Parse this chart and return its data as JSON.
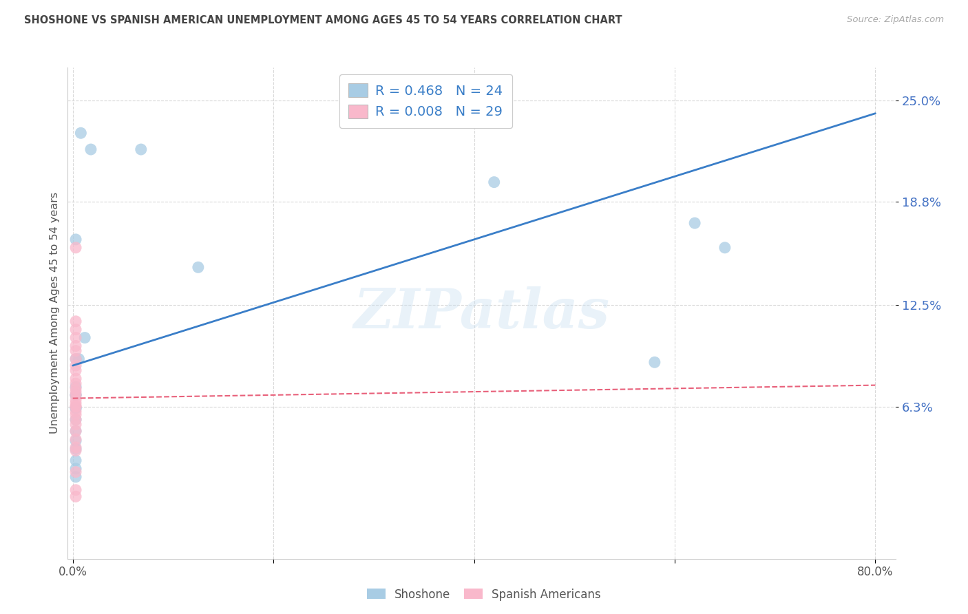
{
  "title": "SHOSHONE VS SPANISH AMERICAN UNEMPLOYMENT AMONG AGES 45 TO 54 YEARS CORRELATION CHART",
  "source": "Source: ZipAtlas.com",
  "ylabel": "Unemployment Among Ages 45 to 54 years",
  "ytick_values": [
    0.063,
    0.125,
    0.188,
    0.25
  ],
  "ytick_labels": [
    "6.3%",
    "12.5%",
    "18.8%",
    "25.0%"
  ],
  "xlim": [
    -0.005,
    0.82
  ],
  "ylim": [
    -0.03,
    0.27
  ],
  "watermark": "ZIPatlas",
  "legend_blue_r": "R = 0.468",
  "legend_blue_n": "N = 24",
  "legend_pink_r": "R = 0.008",
  "legend_pink_n": "N = 29",
  "blue_color": "#a8cce4",
  "pink_color": "#f9b8cb",
  "trend_blue_color": "#3a7ec8",
  "trend_pink_color": "#e8607a",
  "legend_text_color": "#3a7ec8",
  "shoshone_x": [
    0.008,
    0.018,
    0.068,
    0.003,
    0.003,
    0.006,
    0.012,
    0.125,
    0.003,
    0.003,
    0.003,
    0.003,
    0.003,
    0.003,
    0.003,
    0.003,
    0.003,
    0.003,
    0.003,
    0.003,
    0.62,
    0.65,
    0.58,
    0.42
  ],
  "shoshone_y": [
    0.23,
    0.22,
    0.22,
    0.165,
    0.092,
    0.092,
    0.105,
    0.148,
    0.075,
    0.07,
    0.062,
    0.055,
    0.048,
    0.042,
    0.037,
    0.03,
    0.025,
    0.02,
    0.07,
    0.062,
    0.175,
    0.16,
    0.09,
    0.2
  ],
  "spanish_x": [
    0.003,
    0.003,
    0.003,
    0.003,
    0.003,
    0.003,
    0.003,
    0.003,
    0.003,
    0.003,
    0.003,
    0.003,
    0.003,
    0.003,
    0.003,
    0.003,
    0.003,
    0.003,
    0.003,
    0.003,
    0.003,
    0.003,
    0.003,
    0.003,
    0.003,
    0.003,
    0.003,
    0.003,
    0.003
  ],
  "spanish_y": [
    0.16,
    0.115,
    0.11,
    0.105,
    0.1,
    0.097,
    0.092,
    0.088,
    0.085,
    0.08,
    0.077,
    0.074,
    0.072,
    0.07,
    0.067,
    0.065,
    0.063,
    0.063,
    0.06,
    0.058,
    0.055,
    0.052,
    0.048,
    0.043,
    0.038,
    0.036,
    0.023,
    0.012,
    0.008
  ],
  "blue_trend_x0": 0.0,
  "blue_trend_x1": 0.8,
  "blue_trend_y0": 0.088,
  "blue_trend_y1": 0.242,
  "pink_trend_x0": 0.0,
  "pink_trend_x1": 0.8,
  "pink_trend_y0": 0.068,
  "pink_trend_y1": 0.076,
  "grid_color": "#d8d8d8",
  "bg_color": "#ffffff",
  "title_color": "#444444",
  "label_color": "#555555",
  "ytick_color": "#4472c4",
  "xtick_positions": [
    0.0,
    0.2,
    0.4,
    0.6,
    0.8
  ],
  "xtick_labels": [
    "0.0%",
    "",
    "",
    "",
    "80.0%"
  ]
}
